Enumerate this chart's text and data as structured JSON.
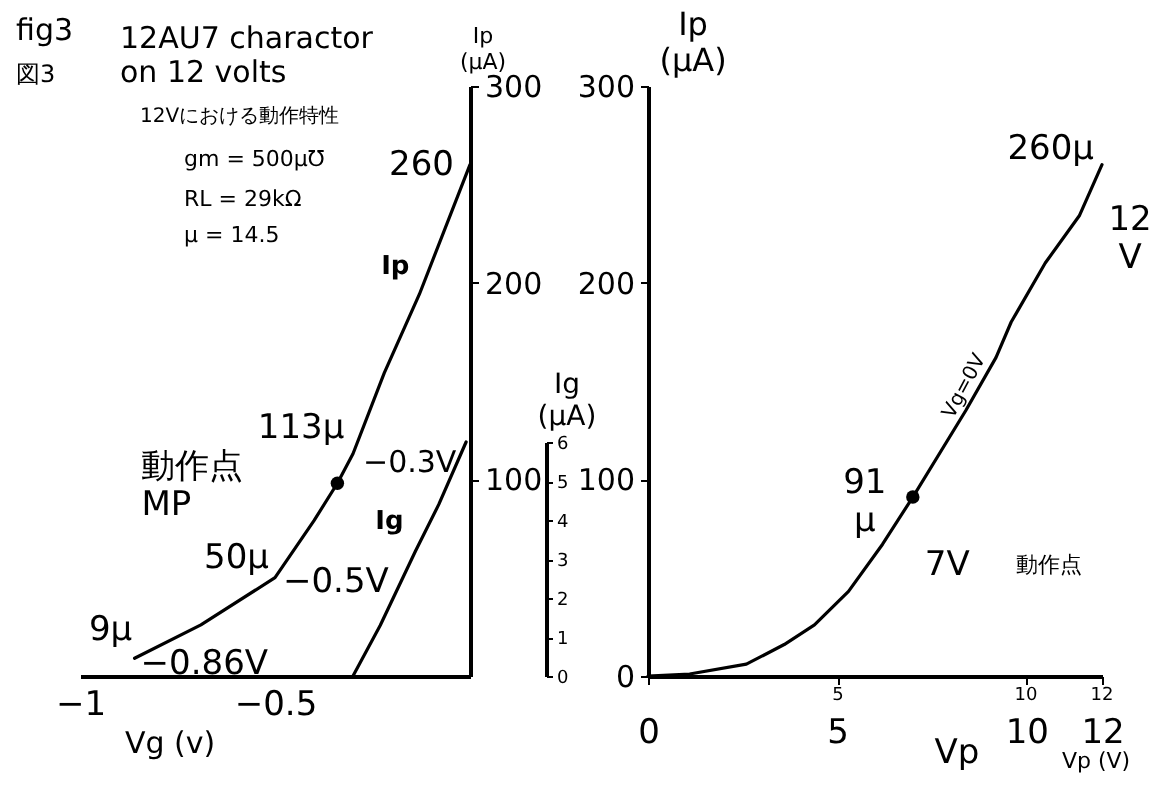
{
  "chart_data": [
    {
      "type": "line",
      "title": "12AU7 charactor\non 12 volts",
      "xlabel": "Vg (v)",
      "ylabel": "Ip\n(μA)",
      "y2label": "Ig\n(μA)",
      "xlim": [
        -1,
        0
      ],
      "xticks": [
        -1,
        -0.5
      ],
      "ylim": [
        0,
        300
      ],
      "yticks": [
        100,
        200,
        300
      ],
      "y2lim": [
        0,
        6
      ],
      "y2ticks": [
        0,
        1,
        2,
        3,
        4,
        5,
        6
      ],
      "series": [
        {
          "name": "Ip",
          "color": "#000000",
          "x": [
            -0.86,
            -0.69,
            -0.5,
            -0.4,
            -0.34,
            -0.3,
            -0.22,
            -0.13,
            0
          ],
          "values": [
            9,
            26,
            50,
            79,
            98,
            113,
            154,
            194,
            260
          ]
        },
        {
          "name": "Ig",
          "axis": "y2",
          "color": "#000000",
          "x": [
            -0.3,
            -0.23,
            -0.14,
            -0.08,
            -0.01
          ],
          "values": [
            0,
            1.3,
            3.2,
            4.4,
            6
          ]
        },
        {
          "type": "scatter",
          "color": "#000000",
          "x": [
            -0.34
          ],
          "values": [
            98
          ]
        }
      ],
      "annotations": [
        "fig3",
        "図3",
        "12Vにおける動作特性",
        "gm = 500μ℧",
        "RL = 29kΩ",
        "μ = 14.5",
        {
          "text": "260",
          "x": 0,
          "y": 260
        },
        {
          "text": "113μ",
          "x": -0.3,
          "y": 113
        },
        {
          "text": "−0.3V",
          "x": -0.3,
          "y": 113
        },
        {
          "text": "動作点\nMP",
          "x": -0.34,
          "y": 98
        },
        {
          "text": "50μ",
          "x": -0.5,
          "y": 50
        },
        {
          "text": "−0.5V",
          "x": -0.5,
          "y": 50
        },
        {
          "text": "9μ",
          "x": -0.86,
          "y": 9
        },
        {
          "text": "−0.86V",
          "x": -0.86,
          "y": 9
        }
      ]
    },
    {
      "type": "line",
      "xlabel": "Vp",
      "ylabel": "Ip\n(μA)",
      "xlim": [
        0,
        12
      ],
      "xticks": [
        0,
        5,
        10,
        12
      ],
      "ylim": [
        0,
        300
      ],
      "yticks": [
        0,
        100,
        200,
        300
      ],
      "series": [
        {
          "color": "#000000",
          "x": [
            0,
            1.1,
            2.6,
            3.6,
            4.4,
            5.3,
            6.2,
            7,
            8.4,
            9.2,
            9.6,
            10.5,
            11.4,
            12
          ],
          "values": [
            0,
            1,
            6,
            16,
            26,
            43,
            67,
            91,
            135,
            162,
            180,
            210,
            234,
            260
          ]
        },
        {
          "type": "scatter",
          "color": "#000000",
          "x": [
            7
          ],
          "values": [
            91
          ]
        }
      ],
      "annotations": [
        {
          "text": "260μ",
          "x": 12,
          "y": 260
        },
        "12\nV",
        {
          "text": "91\nμ",
          "x": 7,
          "y": 91
        },
        {
          "text": "7V",
          "x": 7,
          "y": 91
        },
        "動作点",
        "Vg=0V",
        "Vp (V)",
        "5",
        "10",
        "12"
      ]
    }
  ]
}
